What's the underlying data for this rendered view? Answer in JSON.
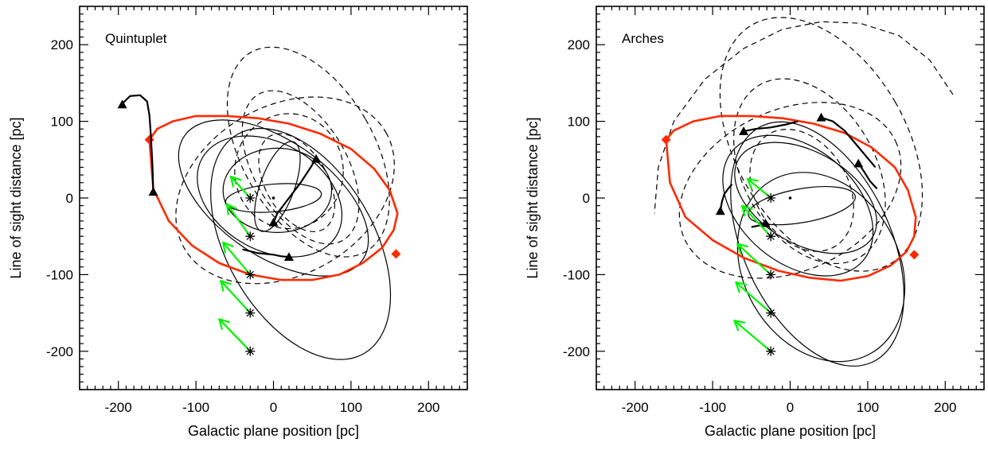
{
  "colors": {
    "ring": "#ff2a00",
    "arrow": "#00f500",
    "ink": "#000000"
  },
  "chart_data": [
    {
      "type": "scatter",
      "title": "Quintuplet",
      "xlabel": "Galactic plane position [pc]",
      "ylabel": "Line of sight distance [pc]",
      "xlim": [
        -250,
        250
      ],
      "ylim": [
        -250,
        250
      ],
      "xticks": [
        -200,
        -100,
        0,
        100,
        200
      ],
      "yticks": [
        -200,
        -100,
        0,
        100,
        200
      ],
      "xtick_labels": [
        "-200",
        "-100",
        "0",
        "100",
        "200"
      ],
      "ytick_labels": [
        "-200",
        "-100",
        "0",
        "100",
        "200"
      ],
      "ring": {
        "x": [
          -160,
          -150,
          -130,
          -100,
          -60,
          -20,
          20,
          60,
          100,
          130,
          150,
          160,
          155,
          140,
          115,
          85,
          50,
          10,
          -30,
          -70,
          -105,
          -135,
          -155,
          -160
        ],
        "y": [
          76,
          90,
          100,
          107,
          107,
          104,
          97,
          84,
          64,
          38,
          10,
          -20,
          -42,
          -65,
          -85,
          -100,
          -107,
          -107,
          -100,
          -85,
          -62,
          -30,
          12,
          76
        ]
      },
      "ring_markers": [
        {
          "x": -160,
          "y": 76
        },
        {
          "x": 158,
          "y": -73
        }
      ],
      "start_points": [
        {
          "x": -30,
          "y": 0
        },
        {
          "x": -30,
          "y": -50
        },
        {
          "x": -30,
          "y": -100
        },
        {
          "x": -30,
          "y": -150
        },
        {
          "x": -30,
          "y": -200
        }
      ],
      "center_point": {
        "x": 0,
        "y": 0
      },
      "velocity_arrows": [
        {
          "from": [
            -30,
            0
          ],
          "to": [
            -55,
            28
          ]
        },
        {
          "from": [
            -30,
            -50
          ],
          "to": [
            -60,
            -8
          ]
        },
        {
          "from": [
            -30,
            -100
          ],
          "to": [
            -65,
            -58
          ]
        },
        {
          "from": [
            -30,
            -150
          ],
          "to": [
            -68,
            -108
          ]
        },
        {
          "from": [
            -30,
            -200
          ],
          "to": [
            -70,
            -158
          ]
        }
      ],
      "tracks": [
        {
          "x": [
            -195,
            -185,
            -172,
            -163,
            -160,
            -158,
            -156,
            -155
          ],
          "y": [
            123,
            133,
            134,
            126,
            108,
            80,
            40,
            8
          ]
        },
        {
          "x": [
            -40,
            -20,
            0,
            10,
            20
          ],
          "y": [
            -67,
            -72,
            -74,
            -76,
            -77
          ]
        },
        {
          "x": [
            55,
            48,
            35,
            20,
            5,
            0
          ],
          "y": [
            52,
            40,
            20,
            0,
            -20,
            -32
          ]
        }
      ],
      "track_end_markers": [
        {
          "x": -195,
          "y": 122
        },
        {
          "x": -155,
          "y": 8
        },
        {
          "x": 20,
          "y": -77
        },
        {
          "x": 0,
          "y": -32
        },
        {
          "x": 55,
          "y": 51
        }
      ],
      "solid_orbits": [
        {
          "cx": 0,
          "cy": 0,
          "rx": 62,
          "ry": 18,
          "rot": 5
        },
        {
          "cx": 5,
          "cy": 15,
          "rx": 22,
          "ry": 62,
          "rot": -20
        },
        {
          "cx": 5,
          "cy": 10,
          "rx": 70,
          "ry": 55,
          "rot": 0
        },
        {
          "cx": -5,
          "cy": 2,
          "rx": 100,
          "ry": 70,
          "rot": -30
        },
        {
          "cx": 0,
          "cy": 0,
          "rx": 140,
          "ry": 75,
          "rot": -35
        },
        {
          "cx": 35,
          "cy": -60,
          "rx": 95,
          "ry": 165,
          "rot": 30
        }
      ],
      "dashed_orbits": [
        {
          "cx": 30,
          "cy": 20,
          "rx": 40,
          "ry": 70,
          "rot": 30
        },
        {
          "cx": 35,
          "cy": 40,
          "rx": 60,
          "ry": 110,
          "rot": 30
        },
        {
          "cx": 45,
          "cy": 60,
          "rx": 85,
          "ry": 150,
          "rot": 30
        },
        {
          "cx": 20,
          "cy": 35,
          "rx": 70,
          "ry": 75,
          "rot": 0
        },
        {
          "cx": 15,
          "cy": 10,
          "rx": 150,
          "ry": 110,
          "rot": 30
        }
      ]
    },
    {
      "type": "scatter",
      "title": "Arches",
      "xlabel": "Galactic plane position [pc]",
      "ylabel": "Line of sight distance [pc]",
      "xlim": [
        -250,
        250
      ],
      "ylim": [
        -250,
        250
      ],
      "xticks": [
        -200,
        -100,
        0,
        100,
        200
      ],
      "yticks": [
        -200,
        -100,
        0,
        100,
        200
      ],
      "xtick_labels": [
        "-200",
        "-100",
        "0",
        "100",
        "200"
      ],
      "ytick_labels": [
        "-200",
        "-100",
        "0",
        "100",
        "200"
      ],
      "ring": {
        "x": [
          -160,
          -150,
          -125,
          -90,
          -50,
          -10,
          30,
          70,
          105,
          135,
          152,
          162,
          160,
          150,
          130,
          100,
          65,
          25,
          -15,
          -60,
          -100,
          -135,
          -155,
          -160
        ],
        "y": [
          76,
          88,
          100,
          107,
          107,
          104,
          97,
          85,
          66,
          40,
          10,
          -25,
          -50,
          -70,
          -88,
          -102,
          -108,
          -104,
          -95,
          -78,
          -55,
          -25,
          20,
          76
        ]
      },
      "ring_markers": [
        {
          "x": -160,
          "y": 76
        },
        {
          "x": 160,
          "y": -74
        }
      ],
      "start_points": [
        {
          "x": -25,
          "y": 0
        },
        {
          "x": -25,
          "y": -50
        },
        {
          "x": -25,
          "y": -100
        },
        {
          "x": -25,
          "y": -150
        },
        {
          "x": -25,
          "y": -200
        }
      ],
      "center_point": {
        "x": 0,
        "y": 0
      },
      "velocity_arrows": [
        {
          "from": [
            -25,
            0
          ],
          "to": [
            -55,
            25
          ]
        },
        {
          "from": [
            -25,
            -50
          ],
          "to": [
            -62,
            -10
          ]
        },
        {
          "from": [
            -25,
            -100
          ],
          "to": [
            -68,
            -60
          ]
        },
        {
          "from": [
            -25,
            -150
          ],
          "to": [
            -70,
            -110
          ]
        },
        {
          "from": [
            -25,
            -200
          ],
          "to": [
            -72,
            -160
          ]
        }
      ],
      "tracks": [
        {
          "x": [
            -60,
            -45,
            -25,
            -5,
            10
          ],
          "y": [
            87,
            90,
            92,
            96,
            100
          ]
        },
        {
          "x": [
            40,
            55,
            70,
            85,
            100,
            110
          ],
          "y": [
            105,
            100,
            88,
            70,
            52,
            40
          ]
        },
        {
          "x": [
            -90,
            -88,
            -85,
            -80,
            -75
          ],
          "y": [
            -17,
            -5,
            5,
            12,
            18
          ]
        },
        {
          "x": [
            -32,
            -40,
            -50
          ],
          "y": [
            -33,
            -36,
            -38
          ]
        },
        {
          "x": [
            88,
            95,
            103,
            112
          ],
          "y": [
            45,
            35,
            22,
            12
          ]
        }
      ],
      "track_end_markers": [
        {
          "x": -60,
          "y": 87
        },
        {
          "x": 40,
          "y": 105
        },
        {
          "x": -90,
          "y": -17
        },
        {
          "x": -32,
          "y": -33
        },
        {
          "x": 88,
          "y": 45
        }
      ],
      "solid_orbits": [
        {
          "cx": 15,
          "cy": -10,
          "rx": 70,
          "ry": 22,
          "rot": 10
        },
        {
          "cx": 20,
          "cy": 0,
          "rx": 100,
          "ry": 60,
          "rot": -30
        },
        {
          "cx": 10,
          "cy": -10,
          "rx": 110,
          "ry": 75,
          "rot": -40
        },
        {
          "cx": 35,
          "cy": -60,
          "rx": 95,
          "ry": 170,
          "rot": 25
        },
        {
          "cx": 40,
          "cy": -90,
          "rx": 100,
          "ry": 130,
          "rot": 30
        }
      ],
      "dashed_orbits": [
        {
          "cx": 15,
          "cy": 10,
          "rx": 60,
          "ry": 85,
          "rot": 30
        },
        {
          "cx": 25,
          "cy": 35,
          "rx": 85,
          "ry": 130,
          "rot": 30
        },
        {
          "cx": 40,
          "cy": 70,
          "rx": 110,
          "ry": 180,
          "rot": 30
        },
        {
          "cx": 0,
          "cy": 10,
          "rx": 150,
          "ry": 105,
          "rot": 25
        }
      ],
      "open_dashed": [
        {
          "x": [
            210,
            180,
            140,
            90,
            40,
            -10,
            -60,
            -110,
            -150,
            -170,
            -175
          ],
          "y": [
            135,
            180,
            212,
            228,
            230,
            220,
            195,
            155,
            100,
            40,
            -20
          ]
        }
      ]
    }
  ]
}
